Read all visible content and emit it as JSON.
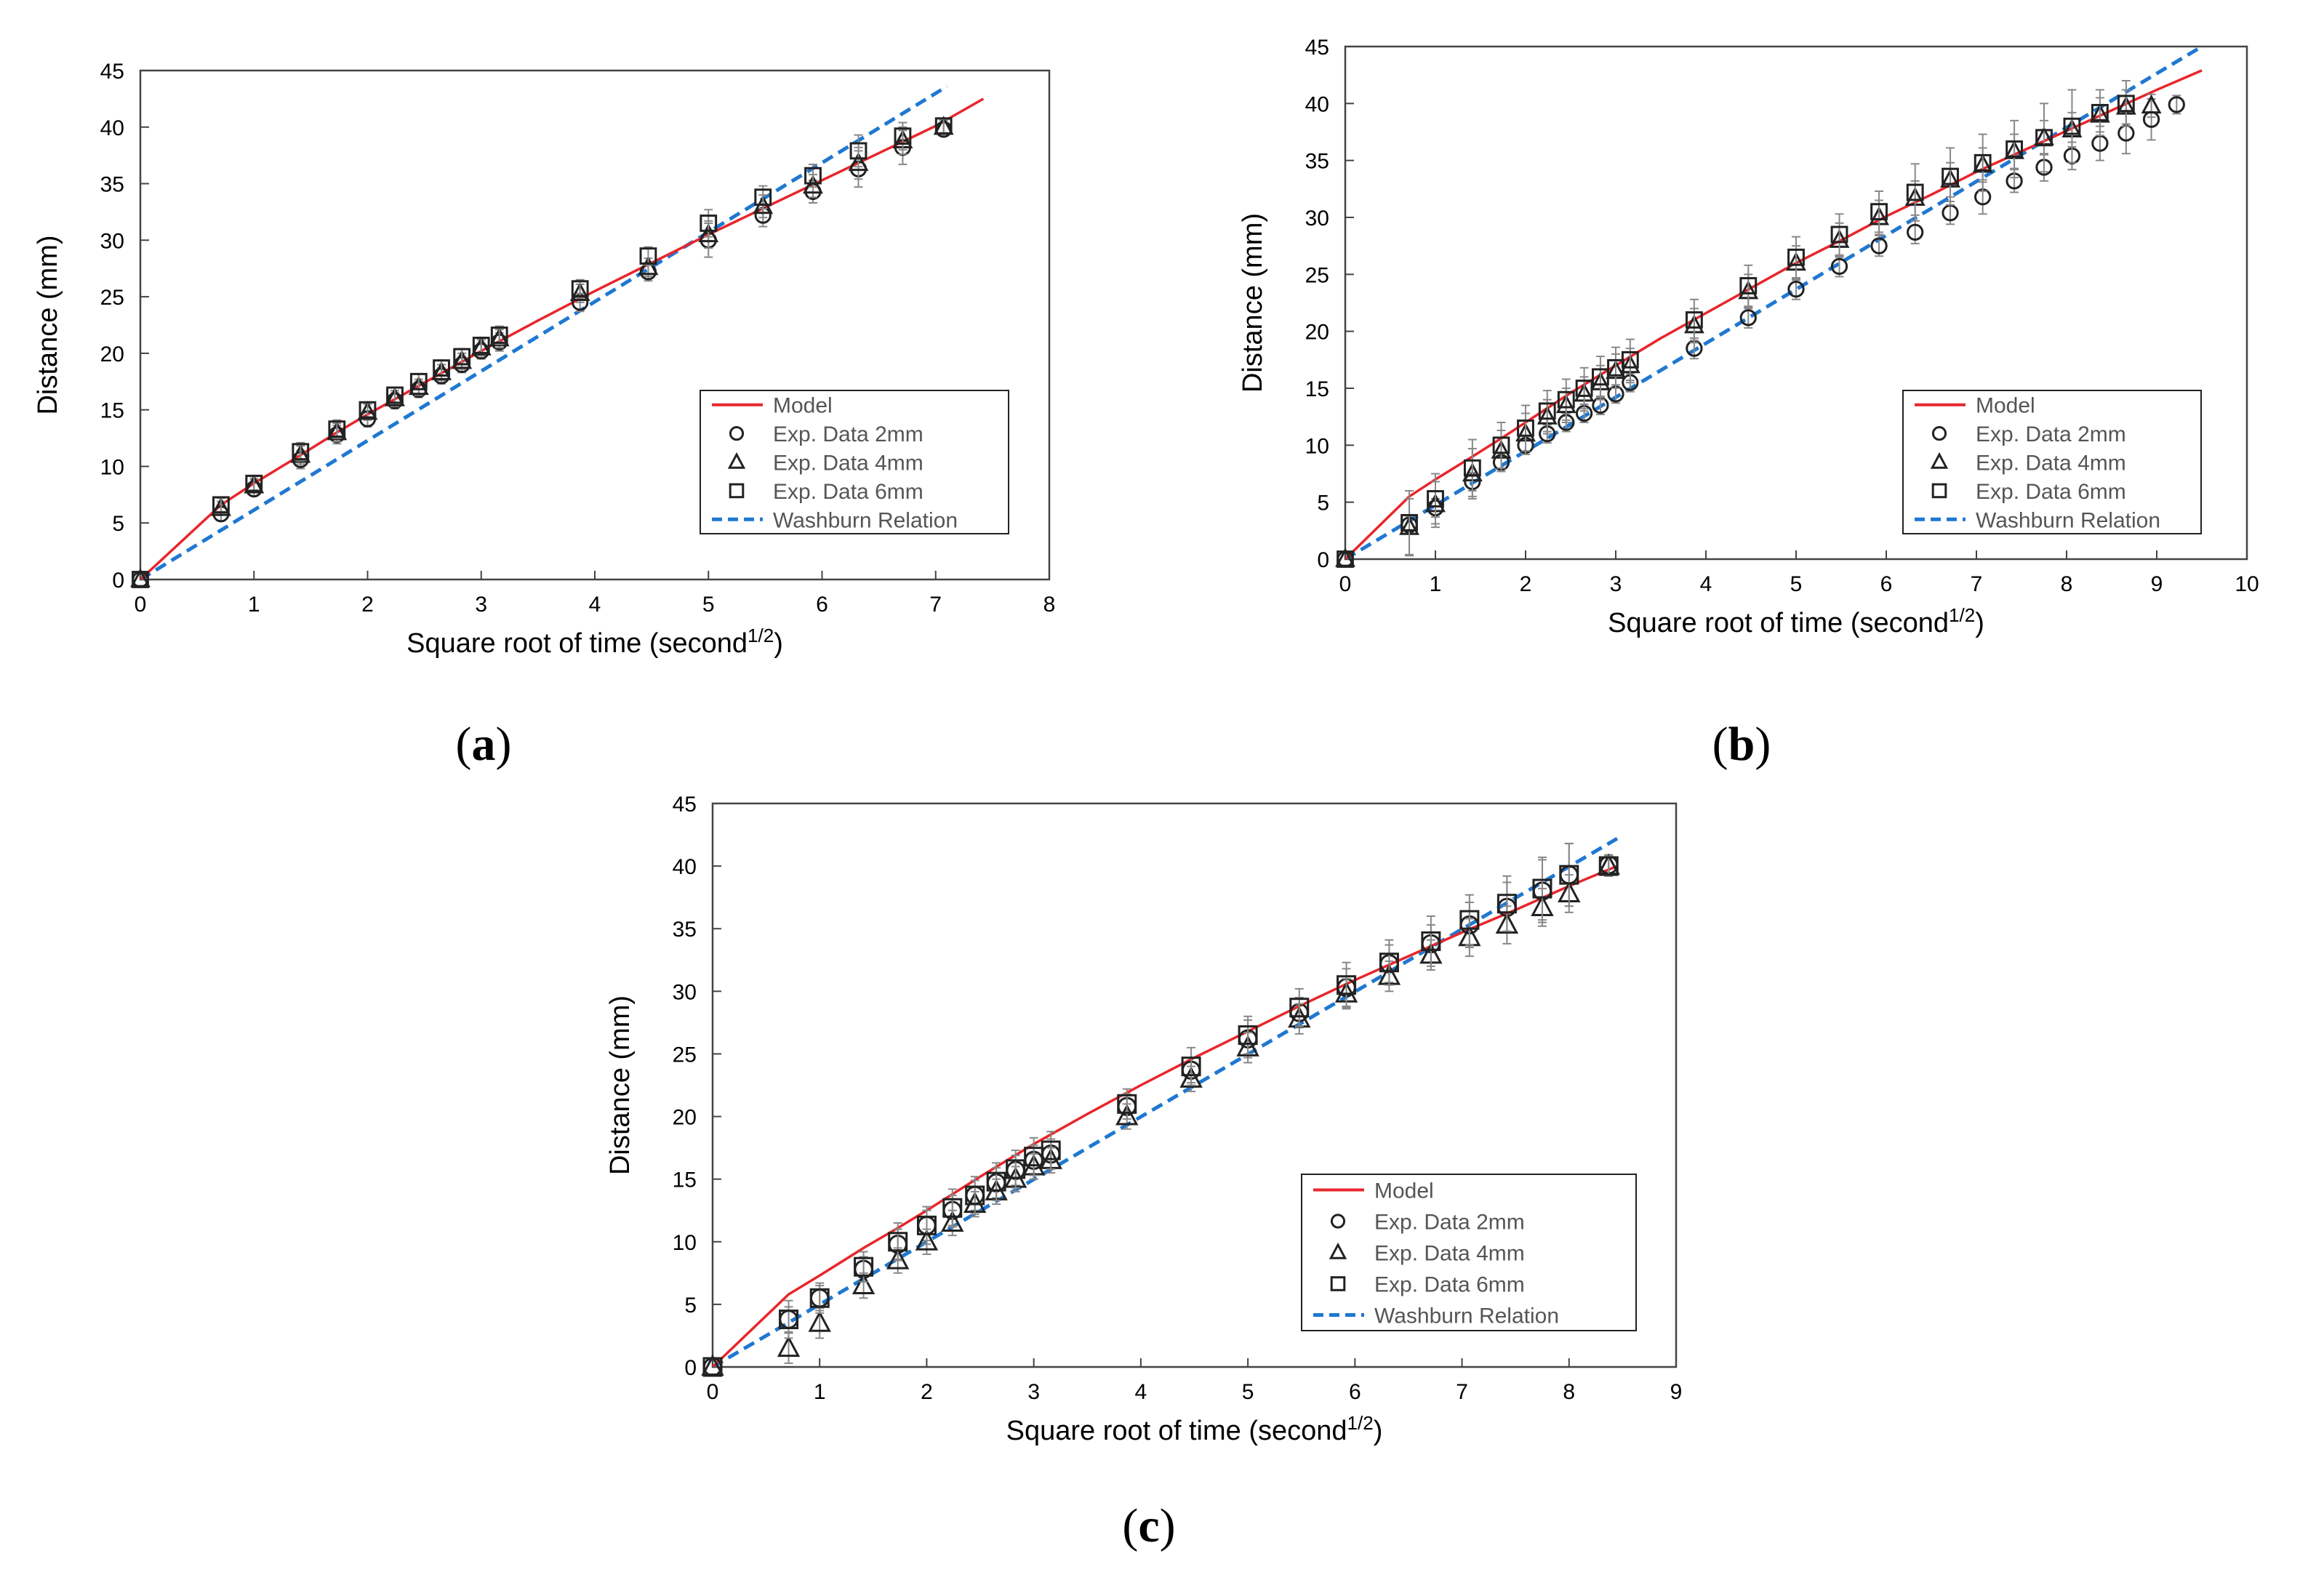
{
  "chart_data": [
    {
      "type": "scatter",
      "panel_label": "a",
      "xlabel": "Square root of time (second",
      "xlabel_sup": "1/2",
      "xlabel_close": ")",
      "ylabel": "Distance (mm)",
      "xlim": [
        0,
        8
      ],
      "ylim": [
        0,
        45
      ],
      "xticks": [
        0,
        1,
        2,
        3,
        4,
        5,
        6,
        7,
        8
      ],
      "yticks": [
        0,
        5,
        10,
        15,
        20,
        25,
        30,
        35,
        40,
        45
      ],
      "legend_position": "bottom-right",
      "legend": [
        "Model",
        "Exp. Data 2mm",
        "Exp. Data 4mm",
        "Exp. Data 6mm",
        "Washburn Relation"
      ],
      "model": {
        "name": "Model",
        "color": "#e8262b",
        "x": [
          0,
          0.71,
          1.0,
          1.41,
          1.73,
          2.0,
          2.5,
          3.0,
          3.5,
          4.0,
          4.5,
          5.0,
          5.5,
          6.0,
          6.5,
          7.0,
          7.42
        ],
        "y": [
          0,
          6.6,
          8.5,
          11.0,
          13.0,
          14.6,
          17.4,
          20.2,
          22.9,
          25.5,
          28.0,
          30.5,
          32.9,
          35.3,
          37.7,
          40.1,
          42.5
        ]
      },
      "washburn": {
        "name": "Washburn Relation",
        "color": "#1f78d1",
        "x": [
          0,
          7.1
        ],
        "y": [
          0,
          43.6
        ]
      },
      "series": [
        {
          "name": "Exp. Data 2mm",
          "marker": "circle",
          "x": [
            0,
            0.71,
            1.0,
            1.41,
            1.73,
            2.0,
            2.24,
            2.45,
            2.65,
            2.83,
            3.0,
            3.16,
            3.87,
            4.47,
            5.0,
            5.48,
            5.92,
            6.32,
            6.71,
            7.07
          ],
          "y": [
            0,
            5.8,
            8.0,
            10.6,
            12.8,
            14.2,
            15.8,
            16.8,
            18.0,
            19.0,
            20.2,
            21.0,
            24.5,
            27.2,
            30.0,
            32.2,
            34.3,
            36.3,
            38.2,
            39.8
          ],
          "err": [
            0,
            0.6,
            0.6,
            0.8,
            0.8,
            0.7,
            0.7,
            0.7,
            0.7,
            0.7,
            0.7,
            0.8,
            0.8,
            0.8,
            1.5,
            1.0,
            1.0,
            1.6,
            1.5,
            0.6
          ]
        },
        {
          "name": "Exp. Data 4mm",
          "marker": "triangle",
          "x": [
            0,
            0.71,
            1.0,
            1.41,
            1.73,
            2.0,
            2.24,
            2.45,
            2.65,
            2.83,
            3.0,
            3.16,
            3.87,
            4.47,
            5.0,
            5.48,
            5.92,
            6.32,
            6.71,
            7.07
          ],
          "y": [
            0,
            6.3,
            8.3,
            11.0,
            13.0,
            14.8,
            16.0,
            17.0,
            18.3,
            19.3,
            20.5,
            21.3,
            25.3,
            27.6,
            30.5,
            33.0,
            34.8,
            36.8,
            38.8,
            40.0
          ],
          "err": [
            0,
            0.6,
            0.6,
            0.8,
            0.8,
            0.7,
            0.7,
            0.7,
            0.7,
            0.7,
            0.7,
            0.8,
            0.8,
            0.8,
            1.2,
            1.0,
            1.0,
            1.4,
            1.2,
            0.6
          ]
        },
        {
          "name": "Exp. Data 6mm",
          "marker": "square",
          "x": [
            0,
            0.71,
            1.0,
            1.41,
            1.73,
            2.0,
            2.24,
            2.45,
            2.65,
            2.83,
            3.0,
            3.16,
            3.87,
            4.47,
            5.0,
            5.48,
            5.92,
            6.32,
            6.71,
            7.07
          ],
          "y": [
            0,
            6.6,
            8.5,
            11.3,
            13.3,
            15.0,
            16.3,
            17.5,
            18.7,
            19.7,
            20.7,
            21.6,
            25.7,
            28.6,
            31.5,
            33.8,
            35.7,
            37.9,
            39.2,
            40.1
          ],
          "err": [
            0,
            0.6,
            0.6,
            0.8,
            0.8,
            0.7,
            0.7,
            0.7,
            0.7,
            0.7,
            0.7,
            0.8,
            0.8,
            0.8,
            1.2,
            1.0,
            1.0,
            1.4,
            1.2,
            0.6
          ]
        }
      ]
    },
    {
      "type": "scatter",
      "panel_label": "b",
      "xlabel": "Square root of time (second",
      "xlabel_sup": "1/2",
      "xlabel_close": ")",
      "ylabel": "Distance (mm)",
      "xlim": [
        0,
        10
      ],
      "ylim": [
        0,
        45
      ],
      "xticks": [
        0,
        1,
        2,
        3,
        4,
        5,
        6,
        7,
        8,
        9,
        10
      ],
      "yticks": [
        0,
        5,
        10,
        15,
        20,
        25,
        30,
        35,
        40,
        45
      ],
      "legend_position": "bottom-right",
      "legend": [
        "Model",
        "Exp. Data 2mm",
        "Exp. Data 4mm",
        "Exp. Data 6mm",
        "Washburn Relation"
      ],
      "model": {
        "name": "Model",
        "color": "#e8262b",
        "x": [
          0,
          0.71,
          1.0,
          1.41,
          1.73,
          2.0,
          2.5,
          3.0,
          3.5,
          4.0,
          4.5,
          5.0,
          5.5,
          6.0,
          6.5,
          7.0,
          7.5,
          8.0,
          8.5,
          9.0,
          9.5
        ],
        "y": [
          0,
          5.5,
          7.0,
          9.0,
          10.6,
          12.0,
          14.6,
          17.0,
          19.4,
          21.6,
          23.8,
          26.0,
          28.0,
          30.1,
          32.0,
          34.0,
          35.8,
          37.6,
          39.4,
          41.2,
          42.9
        ]
      },
      "washburn": {
        "name": "Washburn Relation",
        "color": "#1f78d1",
        "x": [
          0,
          9.5
        ],
        "y": [
          0,
          45
        ]
      },
      "series": [
        {
          "name": "Exp. Data 2mm",
          "marker": "circle",
          "x": [
            0,
            0.71,
            1.0,
            1.41,
            1.73,
            2.0,
            2.24,
            2.45,
            2.65,
            2.83,
            3.0,
            3.16,
            3.87,
            4.47,
            5.0,
            5.48,
            5.92,
            6.32,
            6.71,
            7.07,
            7.42,
            7.75,
            8.06,
            8.37,
            8.66,
            8.94,
            9.22
          ],
          "y": [
            0,
            3.0,
            4.5,
            6.8,
            8.5,
            10.0,
            11.0,
            12.0,
            12.8,
            13.5,
            14.5,
            15.5,
            18.5,
            21.2,
            23.7,
            25.7,
            27.5,
            28.7,
            30.4,
            31.8,
            33.2,
            34.4,
            35.4,
            36.5,
            37.4,
            38.6,
            39.9
          ],
          "err": [
            0,
            0.8,
            0.8,
            0.8,
            0.8,
            0.8,
            0.8,
            0.8,
            0.8,
            0.8,
            0.8,
            0.8,
            0.9,
            0.9,
            0.9,
            0.9,
            0.9,
            1.0,
            1.0,
            1.5,
            1.0,
            1.2,
            1.2,
            1.5,
            1.8,
            1.8,
            0.8
          ]
        },
        {
          "name": "Exp. Data 4mm",
          "marker": "triangle",
          "x": [
            0,
            0.71,
            1.0,
            1.41,
            1.73,
            2.0,
            2.24,
            2.45,
            2.65,
            2.83,
            3.0,
            3.16,
            3.87,
            4.47,
            5.0,
            5.48,
            5.92,
            6.32,
            6.71,
            7.07,
            7.42,
            7.75,
            8.06,
            8.37,
            8.66,
            8.94
          ],
          "y": [
            0,
            2.8,
            4.8,
            7.5,
            9.5,
            11.0,
            12.5,
            13.5,
            14.5,
            15.5,
            16.5,
            17.0,
            20.5,
            23.5,
            26.0,
            28.0,
            30.0,
            31.7,
            33.3,
            34.6,
            35.8,
            37.0,
            37.7,
            39.0,
            39.7,
            39.8
          ],
          "err": [
            0,
            2.5,
            2.0,
            2.2,
            1.8,
            1.8,
            1.5,
            1.5,
            1.5,
            1.5,
            1.5,
            1.5,
            1.5,
            1.5,
            1.5,
            1.5,
            1.5,
            1.5,
            1.5,
            1.5,
            1.5,
            1.5,
            1.5,
            1.5,
            1.5,
            1.0
          ]
        },
        {
          "name": "Exp. Data 6mm",
          "marker": "square",
          "x": [
            0,
            0.71,
            1.0,
            1.41,
            1.73,
            2.0,
            2.24,
            2.45,
            2.65,
            2.83,
            3.0,
            3.16,
            3.87,
            4.47,
            5.0,
            5.48,
            5.92,
            6.32,
            6.71,
            7.07,
            7.42,
            7.75,
            8.06,
            8.37,
            8.66
          ],
          "y": [
            0,
            3.2,
            5.3,
            8.0,
            10.0,
            11.5,
            13.0,
            14.0,
            15.0,
            16.0,
            16.8,
            17.5,
            21.0,
            24.0,
            26.5,
            28.5,
            30.5,
            32.2,
            33.6,
            34.8,
            36.0,
            37.0,
            38.0,
            39.2,
            40.0
          ],
          "err": [
            0,
            2.8,
            2.2,
            2.5,
            2.0,
            2.0,
            1.8,
            1.8,
            1.8,
            1.8,
            1.8,
            1.8,
            1.8,
            1.8,
            1.8,
            1.8,
            1.8,
            2.5,
            2.5,
            2.5,
            2.5,
            3.0,
            3.2,
            2.0,
            2.0
          ]
        }
      ]
    },
    {
      "type": "scatter",
      "panel_label": "c",
      "xlabel": "Square root of time (second",
      "xlabel_sup": "1/2",
      "xlabel_close": ")",
      "ylabel": "Distance (mm)",
      "xlim": [
        0,
        9
      ],
      "ylim": [
        0,
        45
      ],
      "xticks": [
        0,
        1,
        2,
        3,
        4,
        5,
        6,
        7,
        8,
        9
      ],
      "yticks": [
        0,
        5,
        10,
        15,
        20,
        25,
        30,
        35,
        40,
        45
      ],
      "legend_position": "bottom-right",
      "legend": [
        "Model",
        "Exp. Data 2mm",
        "Exp. Data 4mm",
        "Exp. Data 6mm",
        "Washburn Relation"
      ],
      "model": {
        "name": "Model",
        "color": "#e8262b",
        "x": [
          0,
          0.71,
          1.0,
          1.41,
          1.73,
          2.0,
          2.5,
          3.0,
          3.5,
          4.0,
          4.5,
          5.0,
          5.5,
          6.0,
          6.5,
          7.0,
          7.5,
          8.0,
          8.45
        ],
        "y": [
          0,
          5.8,
          7.3,
          9.5,
          11.1,
          12.5,
          15.2,
          17.8,
          20.2,
          22.5,
          24.7,
          26.8,
          28.9,
          30.9,
          32.8,
          34.7,
          36.5,
          38.4,
          40.0
        ]
      },
      "washburn": {
        "name": "Washburn Relation",
        "color": "#1f78d1",
        "x": [
          0,
          8.45
        ],
        "y": [
          0,
          42.2
        ]
      },
      "series": [
        {
          "name": "Exp. Data 2mm",
          "marker": "circle",
          "x": [
            0,
            0.71,
            1.0,
            1.41,
            1.73,
            2.0,
            2.24,
            2.45,
            2.65,
            2.83,
            3.0,
            3.16,
            3.87,
            4.47,
            5.0,
            5.48,
            5.92,
            6.32,
            6.71,
            7.07,
            7.42,
            7.75,
            8.0,
            8.37
          ],
          "y": [
            0,
            3.8,
            5.5,
            7.8,
            9.8,
            11.3,
            12.5,
            13.7,
            14.7,
            15.7,
            16.5,
            17.0,
            20.8,
            23.7,
            26.2,
            28.3,
            30.3,
            32.2,
            33.8,
            35.3,
            36.7,
            38.0,
            39.3,
            40.1
          ],
          "err": [
            0,
            1.0,
            1.0,
            1.0,
            1.2,
            1.2,
            1.2,
            1.2,
            1.2,
            1.2,
            1.2,
            1.2,
            1.0,
            1.0,
            1.5,
            1.2,
            1.5,
            1.5,
            1.5,
            1.8,
            2.0,
            2.5,
            2.5,
            0.8
          ]
        },
        {
          "name": "Exp. Data 4mm",
          "marker": "triangle",
          "x": [
            0,
            0.71,
            1.0,
            1.41,
            1.73,
            2.0,
            2.24,
            2.45,
            2.65,
            2.83,
            3.0,
            3.16,
            3.87,
            4.47,
            5.0,
            5.48,
            5.92,
            6.32,
            6.71,
            7.07,
            7.42,
            7.75,
            8.0,
            8.37
          ],
          "y": [
            0,
            1.5,
            3.5,
            6.5,
            8.5,
            10.0,
            11.5,
            13.0,
            14.0,
            15.0,
            16.0,
            16.5,
            20.0,
            23.0,
            25.5,
            27.8,
            29.8,
            31.2,
            32.9,
            34.3,
            35.3,
            36.7,
            37.8,
            40.0
          ],
          "err": [
            0,
            1.2,
            1.2,
            1.0,
            1.0,
            1.0,
            1.0,
            1.0,
            1.0,
            1.0,
            1.0,
            1.0,
            1.0,
            1.0,
            1.2,
            1.2,
            1.2,
            1.2,
            1.2,
            1.5,
            1.5,
            1.5,
            1.5,
            0.8
          ]
        },
        {
          "name": "Exp. Data 6mm",
          "marker": "square",
          "x": [
            0,
            0.71,
            1.0,
            1.41,
            1.73,
            2.0,
            2.24,
            2.45,
            2.65,
            2.83,
            3.0,
            3.16,
            3.87,
            4.47,
            5.0,
            5.48,
            5.92,
            6.32,
            6.71,
            7.07,
            7.42,
            7.75,
            8.0,
            8.37
          ],
          "y": [
            0,
            3.8,
            5.5,
            8.0,
            10.0,
            11.3,
            12.7,
            13.7,
            14.8,
            15.8,
            16.8,
            17.3,
            21.0,
            24.0,
            26.5,
            28.7,
            30.5,
            32.3,
            34.0,
            35.7,
            37.0,
            38.2,
            39.3,
            40.0
          ],
          "err": [
            0,
            1.5,
            1.2,
            1.2,
            1.5,
            1.5,
            1.5,
            1.5,
            1.5,
            1.5,
            1.5,
            1.5,
            1.2,
            1.5,
            1.5,
            1.5,
            1.8,
            1.8,
            2.0,
            2.0,
            2.2,
            2.5,
            2.5,
            0.8
          ]
        }
      ]
    }
  ]
}
